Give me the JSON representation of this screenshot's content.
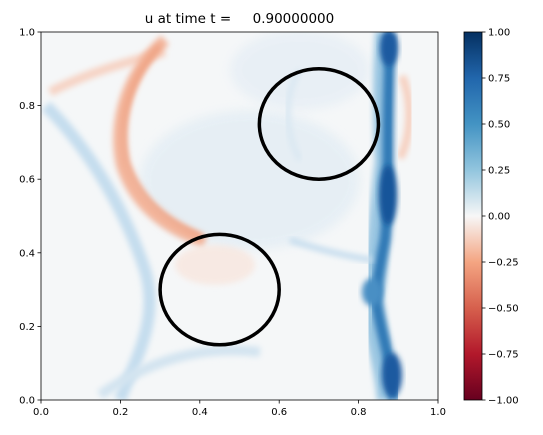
{
  "chart_data": {
    "type": "heatmap",
    "title": "u at time t =     0.90000000",
    "xlabel": "",
    "ylabel": "",
    "xlim": [
      0,
      1
    ],
    "ylim": [
      0,
      1
    ],
    "x_ticks": [
      "0.0",
      "0.2",
      "0.4",
      "0.6",
      "0.8",
      "1.0"
    ],
    "y_ticks": [
      "0.0",
      "0.2",
      "0.4",
      "0.6",
      "0.8",
      "1.0"
    ],
    "colormap": "RdBu",
    "colorbar": {
      "vmin": -1.0,
      "vmax": 1.0,
      "ticks": [
        "1.00",
        "0.75",
        "0.50",
        "0.25",
        "0.00",
        "−0.25",
        "−0.50",
        "−0.75",
        "−1.00"
      ]
    },
    "obstacles": [
      {
        "shape": "circle",
        "cx": 0.7,
        "cy": 0.75,
        "r": 0.15
      },
      {
        "shape": "circle",
        "cx": 0.45,
        "cy": 0.3,
        "r": 0.15
      }
    ],
    "colors": {
      "high": "#053061",
      "mid": "#f7f7f7",
      "low": "#67001f",
      "obstacle_outline": "#000000"
    }
  }
}
